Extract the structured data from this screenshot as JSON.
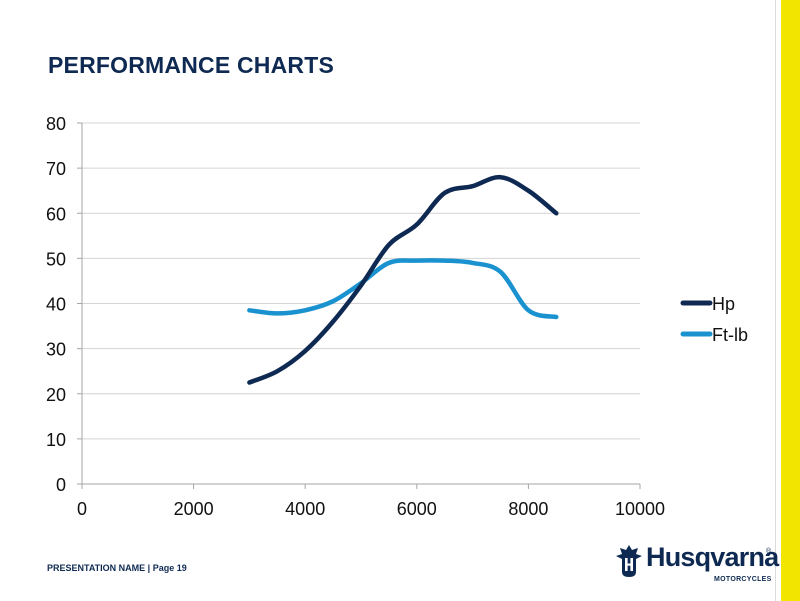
{
  "slide": {
    "title": "PERFORMANCE CHARTS",
    "footer": "PRESENTATION NAME | Page 19"
  },
  "brand": {
    "name": "Husqvarna",
    "registered_mark": "®",
    "subtitle": "MOTORCYCLES",
    "color": "#0f2a52",
    "accent_color": "#f2e600"
  },
  "chart_data": {
    "type": "line",
    "title": "",
    "xlabel": "",
    "ylabel": "",
    "xlim": [
      0,
      10000
    ],
    "ylim": [
      0,
      80
    ],
    "xticks": [
      0,
      2000,
      4000,
      6000,
      8000,
      10000
    ],
    "yticks": [
      0,
      10,
      20,
      30,
      40,
      50,
      60,
      70,
      80
    ],
    "grid": "horizontal",
    "legend": "right",
    "series": [
      {
        "name": "Hp",
        "color": "#0f2a52",
        "x": [
          3000,
          3500,
          4000,
          4500,
          5000,
          5500,
          6000,
          6500,
          7000,
          7500,
          8000,
          8500
        ],
        "y": [
          22.5,
          25,
          29.5,
          36,
          44,
          53,
          57.5,
          64.5,
          66,
          68,
          65,
          60
        ]
      },
      {
        "name": "Ft-lb",
        "color": "#1a92d0",
        "x": [
          3000,
          3500,
          4000,
          4500,
          5000,
          5500,
          6000,
          6500,
          7000,
          7500,
          8000,
          8500
        ],
        "y": [
          38.5,
          37.8,
          38.5,
          40.5,
          44.5,
          49,
          49.5,
          49.5,
          49,
          47,
          38.5,
          37
        ]
      }
    ]
  }
}
